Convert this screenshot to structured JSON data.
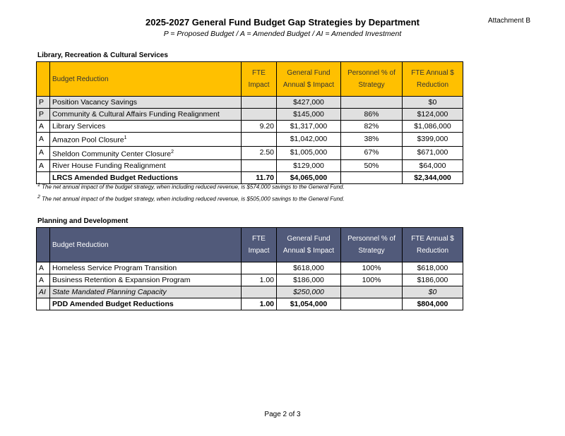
{
  "title": "2025-2027 General Fund Budget Gap Strategies by Department",
  "subtitle": "P = Proposed Budget / A = Amended Budget / AI = Amended Investment",
  "attachment": "Attachment B",
  "headers": {
    "reduction": "Budget Reduction",
    "fte": "FTE Impact",
    "gf": "General Fund Annual $ Impact",
    "pct": "Personnel % of Strategy",
    "fte_red": "FTE Annual $ Reduction"
  },
  "lrcs": {
    "section": "Library, Recreation & Cultural Services",
    "rows": [
      {
        "type": "P",
        "name": "Position Vacancy Savings",
        "fte": "",
        "gf": "$427,000",
        "pct": "",
        "fte_red": "$0",
        "style": "shade"
      },
      {
        "type": "P",
        "name": "Community & Cultural Affairs Funding Realignment",
        "fte": "",
        "gf": "$145,000",
        "pct": "86%",
        "fte_red": "$124,000",
        "style": "shade"
      },
      {
        "type": "A",
        "name": "Library Services",
        "fte": "9.20",
        "gf": "$1,317,000",
        "pct": "82%",
        "fte_red": "$1,086,000",
        "style": ""
      },
      {
        "type": "A",
        "name": "Amazon Pool Closure",
        "sup": "1",
        "fte": "",
        "gf": "$1,042,000",
        "pct": "38%",
        "fte_red": "$399,000",
        "style": ""
      },
      {
        "type": "A",
        "name": "Sheldon Community Center Closure",
        "sup": "2",
        "fte": "2.50",
        "gf": "$1,005,000",
        "pct": "67%",
        "fte_red": "$671,000",
        "style": ""
      },
      {
        "type": "A",
        "name": "River House Funding Realignment",
        "fte": "",
        "gf": "$129,000",
        "pct": "50%",
        "fte_red": "$64,000",
        "style": ""
      },
      {
        "type": "",
        "name": "LRCS Amended Budget Reductions",
        "fte": "11.70",
        "gf": "$4,065,000",
        "pct": "",
        "fte_red": "$2,344,000",
        "style": "total"
      }
    ],
    "footnotes": [
      {
        "mark": "1",
        "text": "The net annual impact of the budget strategy, when including reduced revenue, is $574,000 savings to the General Fund."
      },
      {
        "mark": "2",
        "text": "The net annual impact of the budget strategy, when including reduced revenue, is $505,000 savings to the General Fund."
      }
    ]
  },
  "pdd": {
    "section": "Planning and Development",
    "rows": [
      {
        "type": "A",
        "name": "Homeless Service Program Transition",
        "fte": "",
        "gf": "$618,000",
        "pct": "100%",
        "fte_red": "$618,000",
        "style": ""
      },
      {
        "type": "A",
        "name": "Business Retention & Expansion Program",
        "fte": "1.00",
        "gf": "$186,000",
        "pct": "100%",
        "fte_red": "$186,000",
        "style": ""
      },
      {
        "type": "AI",
        "name": "State Mandated Planning Capacity",
        "fte": "",
        "gf": "$250,000",
        "pct": "",
        "fte_red": "$0",
        "style": "shade ital"
      },
      {
        "type": "",
        "name": "PDD Amended Budget Reductions",
        "fte": "1.00",
        "gf": "$1,054,000",
        "pct": "",
        "fte_red": "$804,000",
        "style": "total"
      }
    ]
  },
  "page": "Page 2 of 3"
}
